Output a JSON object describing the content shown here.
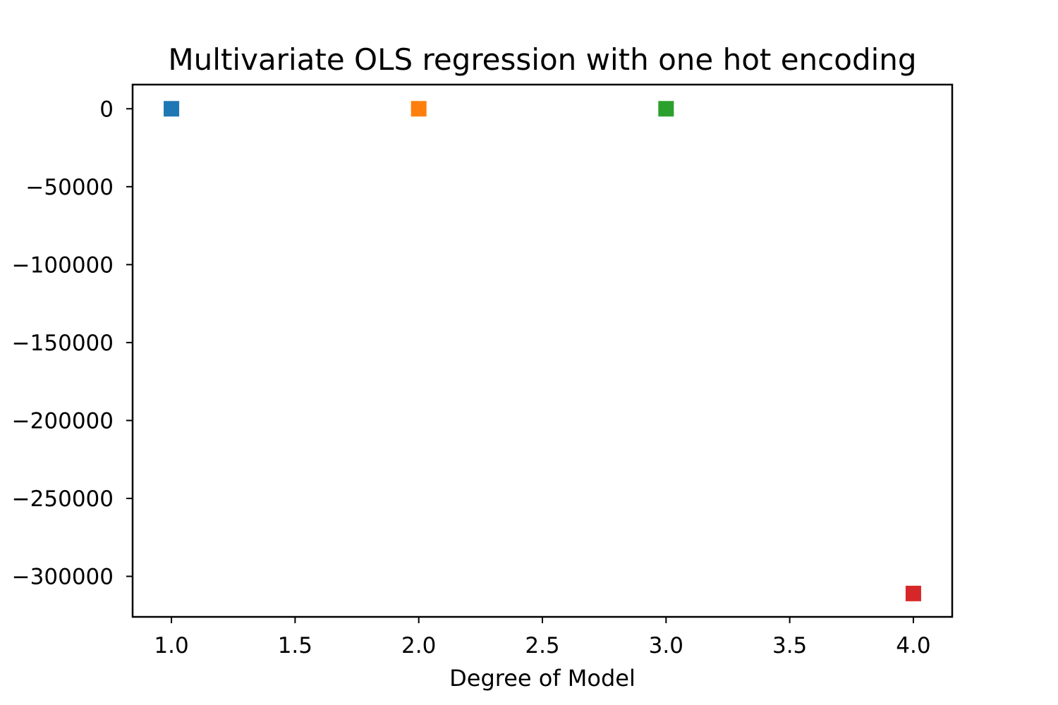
{
  "chart_data": {
    "type": "scatter",
    "title": "Multivariate OLS regression with one hot encoding",
    "xlabel": "Degree of Model",
    "ylabel": "",
    "xlim": [
      0.843,
      4.157
    ],
    "ylim": [
      -326000,
      15500
    ],
    "xticks": [
      1.0,
      1.5,
      2.0,
      2.5,
      3.0,
      3.5,
      4.0
    ],
    "xtick_labels": [
      "1.0",
      "1.5",
      "2.0",
      "2.5",
      "3.0",
      "3.5",
      "4.0"
    ],
    "yticks": [
      0,
      -50000,
      -100000,
      -150000,
      -200000,
      -250000,
      -300000
    ],
    "ytick_labels": [
      "0",
      "−50000",
      "−100000",
      "−150000",
      "−200000",
      "−250000",
      "−300000"
    ],
    "marker": "square",
    "grid": false,
    "legend": "none",
    "series": [
      {
        "x": [
          1
        ],
        "y": [
          0
        ],
        "color": "#1f77b4"
      },
      {
        "x": [
          2
        ],
        "y": [
          0
        ],
        "color": "#ff7f0e"
      },
      {
        "x": [
          3
        ],
        "y": [
          0
        ],
        "color": "#2ca02c"
      },
      {
        "x": [
          4
        ],
        "y": [
          -311000
        ],
        "color": "#d62728"
      }
    ]
  }
}
